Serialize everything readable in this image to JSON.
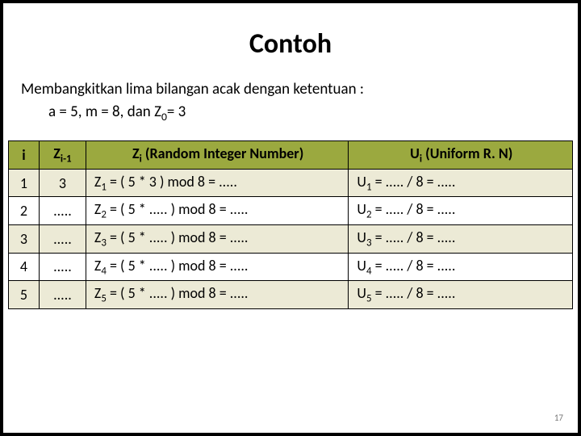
{
  "title": "Contoh",
  "intro_line1": "Membangkitkan  lima bilangan  acak  dengan ketentuan :",
  "intro_line2_pre": "a = 5, m = 8, dan Z",
  "intro_line2_sub": "0",
  "intro_line2_post": "= 3",
  "page_number": "17",
  "table": {
    "headers": {
      "i_label": "i",
      "zprev_pre": "Z",
      "zprev_sub": "i-1",
      "zi_pre": "Z",
      "zi_sub": "i",
      "zi_post": " (Random Integer Number)",
      "ui_pre": "U",
      "ui_sub": "i",
      "ui_post": " (Uniform R. N)"
    },
    "header_bg": "#9ba93f",
    "row_alt_bg": "#ecead6",
    "border_color": "#000000",
    "rows": [
      {
        "i": "1",
        "zprev": "3",
        "zi_pre": "Z",
        "zi_sub": "1",
        "zi_post": " = ( 5 *   3 ) mod 8 = .....",
        "ui_pre": "U",
        "ui_sub": "1",
        "ui_post": " = ..... / 8  = ....."
      },
      {
        "i": "2",
        "zprev": ".....",
        "zi_pre": "Z",
        "zi_sub": "2",
        "zi_post": " = ( 5 * ..... ) mod 8 = .....",
        "ui_pre": "U",
        "ui_sub": "2",
        "ui_post": " = ..... / 8  = ....."
      },
      {
        "i": "3",
        "zprev": ".....",
        "zi_pre": "Z",
        "zi_sub": "3",
        "zi_post": " = ( 5 * ..... ) mod 8 = .....",
        "ui_pre": "U",
        "ui_sub": "3",
        "ui_post": " = ..... / 8  = ....."
      },
      {
        "i": "4",
        "zprev": ".....",
        "zi_pre": "Z",
        "zi_sub": "4",
        "zi_post": " = ( 5 * ..... ) mod 8 = .....",
        "ui_pre": "U",
        "ui_sub": "4",
        "ui_post": " = ..... / 8  = ....."
      },
      {
        "i": "5",
        "zprev": ".....",
        "zi_pre": "Z",
        "zi_sub": "5",
        "zi_post": " = ( 5 * .....  ) mod 8 = .....",
        "ui_pre": "U",
        "ui_sub": "5",
        "ui_post": " = ..... / 8  = ....."
      }
    ]
  }
}
